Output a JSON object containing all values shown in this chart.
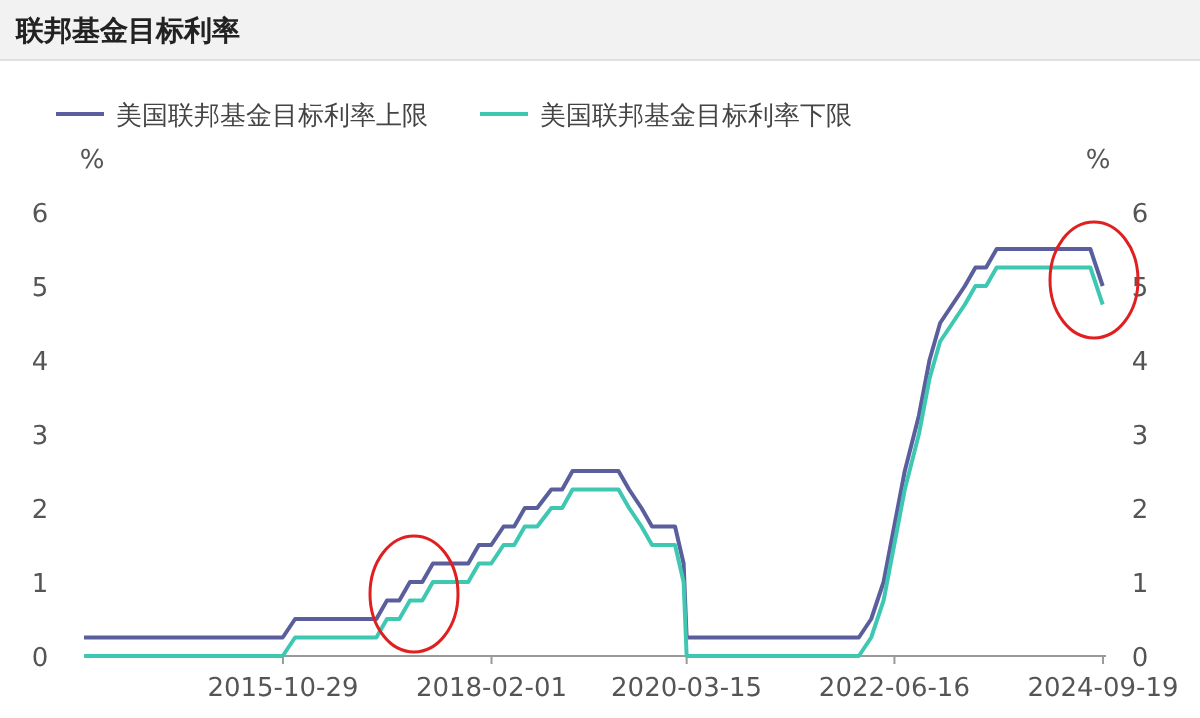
{
  "chart_data": {
    "type": "line",
    "title": "联邦基金目标利率",
    "ylabel": "%",
    "y2label": "%",
    "x": [
      "2013-09-01",
      "2015-10-28",
      "2015-12-16",
      "2016-11-02",
      "2016-12-14",
      "2017-02-01",
      "2017-03-15",
      "2017-05-03",
      "2017-06-14",
      "2017-11-01",
      "2017-12-13",
      "2018-01-31",
      "2018-03-21",
      "2018-05-02",
      "2018-06-13",
      "2018-08-01",
      "2018-09-26",
      "2018-11-08",
      "2018-12-19",
      "2019-06-19",
      "2019-07-31",
      "2019-09-18",
      "2019-10-30",
      "2020-01-29",
      "2020-03-03",
      "2020-03-15",
      "2022-01-26",
      "2022-03-16",
      "2022-05-04",
      "2022-06-15",
      "2022-07-27",
      "2022-09-21",
      "2022-11-02",
      "2022-12-14",
      "2023-02-01",
      "2023-03-22",
      "2023-05-03",
      "2023-06-14",
      "2023-07-26",
      "2024-07-31",
      "2024-09-18"
    ],
    "series": [
      {
        "name": "美国联邦基金目标利率上限",
        "color": "#5a5e9c",
        "values": [
          0.25,
          0.25,
          0.5,
          0.5,
          0.75,
          0.75,
          1.0,
          1.0,
          1.25,
          1.25,
          1.5,
          1.5,
          1.75,
          1.75,
          2.0,
          2.0,
          2.25,
          2.25,
          2.5,
          2.5,
          2.25,
          2.0,
          1.75,
          1.75,
          1.25,
          0.25,
          0.25,
          0.5,
          1.0,
          1.75,
          2.5,
          3.25,
          4.0,
          4.5,
          4.75,
          5.0,
          5.25,
          5.25,
          5.5,
          5.5,
          5.0
        ]
      },
      {
        "name": "美国联邦基金目标利率下限",
        "color": "#3ec8b2",
        "values": [
          0,
          0,
          0.25,
          0.25,
          0.5,
          0.5,
          0.75,
          0.75,
          1.0,
          1.0,
          1.25,
          1.25,
          1.5,
          1.5,
          1.75,
          1.75,
          2.0,
          2.0,
          2.25,
          2.25,
          2.0,
          1.75,
          1.5,
          1.5,
          1.0,
          0,
          0,
          0.25,
          0.75,
          1.5,
          2.25,
          3.0,
          3.75,
          4.25,
          4.5,
          4.75,
          5.0,
          5.0,
          5.25,
          5.25,
          4.75
        ]
      }
    ],
    "xlim": [
      "2013-09-01",
      "2024-10-01"
    ],
    "xticks": [
      {
        "value": "2015-10-29",
        "label": "2015-10-29"
      },
      {
        "value": "2018-02-01",
        "label": "2018-02-01"
      },
      {
        "value": "2020-03-15",
        "label": "2020-03-15"
      },
      {
        "value": "2022-06-16",
        "label": "2022-06-16"
      },
      {
        "value": "2024-09-19",
        "label": "2024-09-19"
      }
    ],
    "ylim": [
      0,
      6
    ],
    "yticks": [
      0,
      1,
      2,
      3,
      4,
      5,
      6
    ],
    "y2lim": [
      0,
      6
    ],
    "y2ticks": [
      0,
      1,
      2,
      3,
      4,
      5,
      6
    ],
    "grid": false,
    "legend": "top left",
    "marker": "none",
    "line_style": "solid"
  }
}
